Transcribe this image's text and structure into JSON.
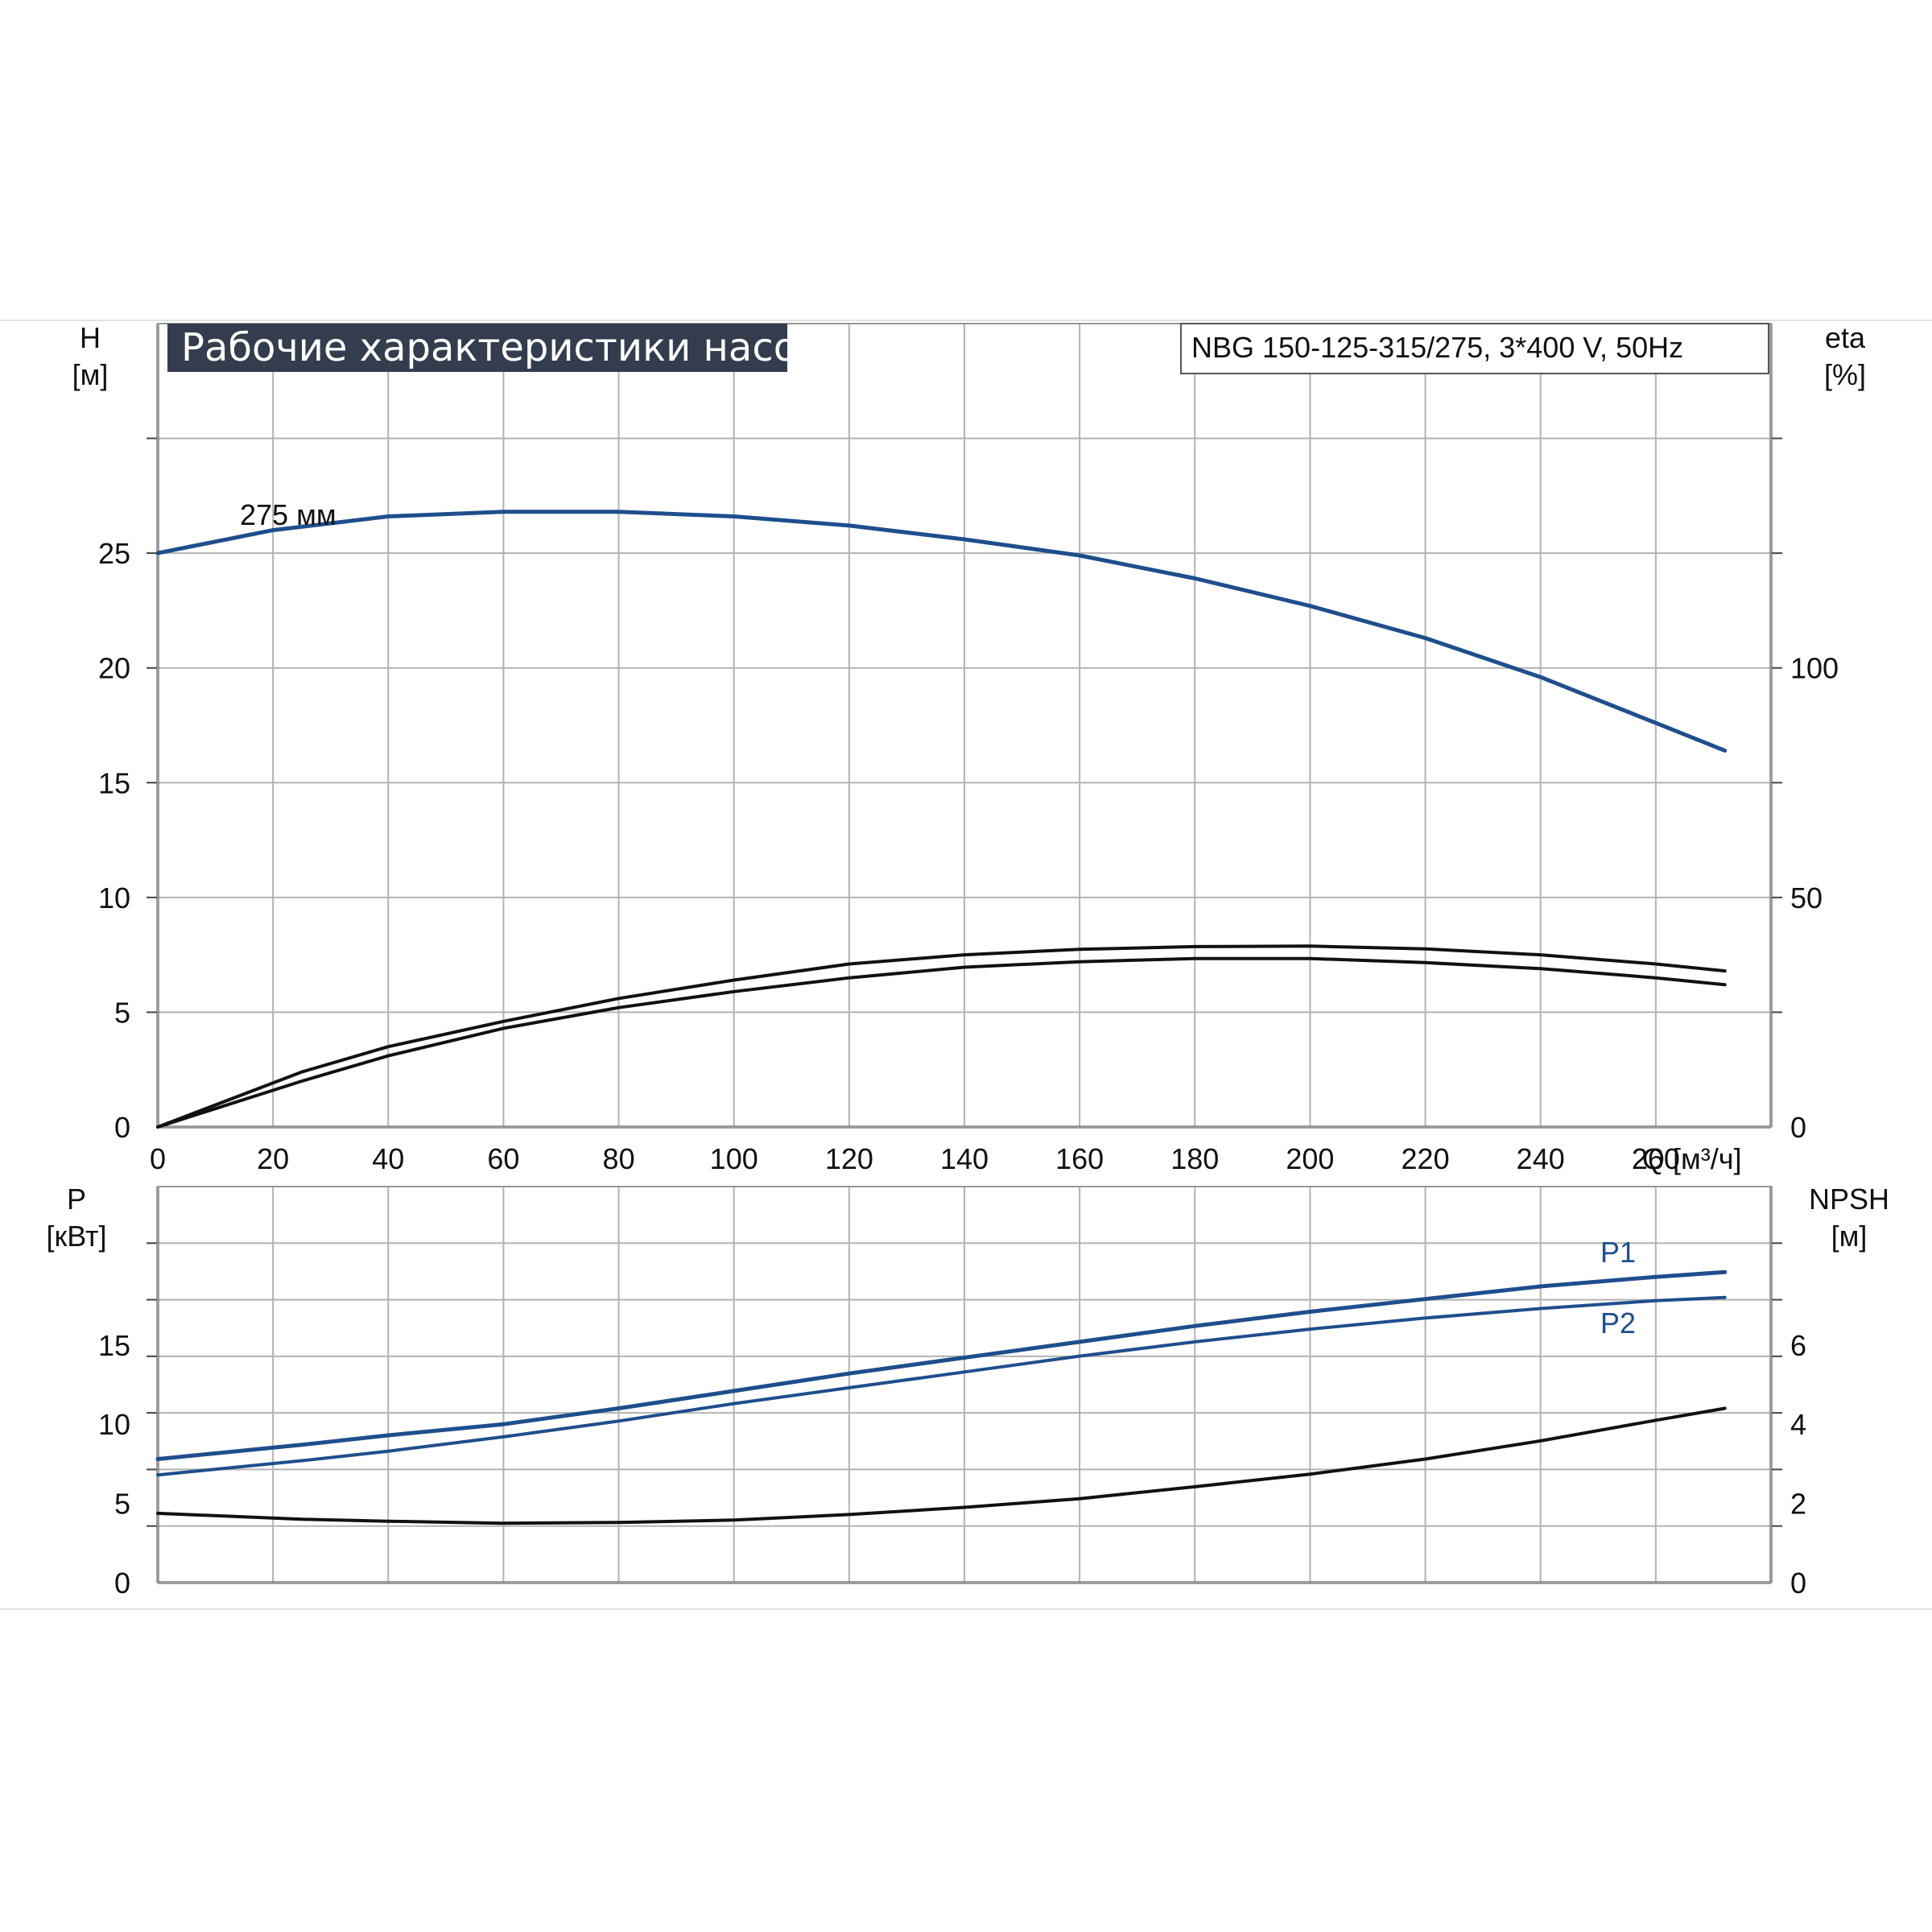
{
  "colors": {
    "blue": "#1f4e8c",
    "black": "#111111",
    "grid": "#b3b3b3",
    "title_bg": "#333d4d"
  },
  "chart_data": [
    {
      "type": "line",
      "title": "Рабочие характеристики насоса",
      "subtitle": "NBG 150-125-315/275, 3*400 V, 50Hz",
      "xlabel": "Q [м³/ч]",
      "ylabel_left": "H\n[м]",
      "ylabel_right": "eta\n[%]",
      "xlim": [
        0,
        280
      ],
      "ylim": [
        0,
        35
      ],
      "y2lim": [
        0,
        175
      ],
      "x_ticks": [
        "0",
        "20",
        "40",
        "60",
        "80",
        "100",
        "120",
        "140",
        "160",
        "180",
        "200",
        "220",
        "240",
        "260"
      ],
      "y_ticks": [
        "0",
        "5",
        "10",
        "15",
        "20",
        "25"
      ],
      "y2_ticks": [
        "0",
        "50",
        "100"
      ],
      "grid": true,
      "annotation": "275 мм",
      "series": [
        {
          "axis": "left",
          "color": "#1f4e8c",
          "x": [
            0,
            20,
            40,
            60,
            80,
            100,
            120,
            140,
            160,
            180,
            200,
            220,
            240,
            260,
            272
          ],
          "y": [
            25.0,
            26.0,
            26.6,
            26.8,
            26.8,
            26.6,
            26.2,
            25.6,
            24.9,
            23.9,
            22.7,
            21.3,
            19.6,
            17.6,
            16.4
          ]
        },
        {
          "axis": "right",
          "color": "#111111",
          "x": [
            0,
            25,
            40,
            60,
            80,
            100,
            120,
            140,
            160,
            180,
            200,
            220,
            240,
            260,
            272
          ],
          "y": [
            0,
            12,
            17.5,
            23,
            28,
            32,
            35.5,
            37.5,
            38.7,
            39.3,
            39.4,
            38.8,
            37.5,
            35.5,
            34
          ]
        },
        {
          "axis": "right",
          "color": "#111111",
          "x": [
            0,
            25,
            40,
            60,
            80,
            100,
            120,
            140,
            160,
            180,
            200,
            220,
            240,
            260,
            272
          ],
          "y": [
            0,
            10,
            15.5,
            21.5,
            26,
            29.5,
            32.5,
            34.8,
            36,
            36.7,
            36.7,
            35.8,
            34.5,
            32.5,
            31
          ]
        }
      ]
    },
    {
      "type": "line",
      "ylabel_left": "P\n[кВт]",
      "ylabel_right": "NPSH\n[м]",
      "xlim": [
        0,
        280
      ],
      "ylim": [
        0,
        25
      ],
      "y2lim": [
        0,
        10
      ],
      "y_ticks": [
        "0",
        "5",
        "10",
        "15"
      ],
      "y2_ticks": [
        "0",
        "2",
        "4",
        "6"
      ],
      "grid": true,
      "series": [
        {
          "name": "P1",
          "axis": "left",
          "color": "#1f4e8c",
          "x": [
            0,
            25,
            40,
            60,
            80,
            100,
            120,
            140,
            160,
            180,
            200,
            220,
            240,
            260,
            272
          ],
          "y": [
            7.8,
            8.7,
            9.3,
            10.0,
            11.0,
            12.1,
            13.2,
            14.2,
            15.2,
            16.2,
            17.1,
            17.9,
            18.7,
            19.3,
            19.6
          ]
        },
        {
          "name": "P2",
          "axis": "left",
          "color": "#1f4e8c",
          "x": [
            0,
            25,
            40,
            60,
            80,
            100,
            120,
            140,
            160,
            180,
            200,
            220,
            240,
            260,
            272
          ],
          "y": [
            6.8,
            7.7,
            8.3,
            9.2,
            10.2,
            11.3,
            12.3,
            13.3,
            14.3,
            15.2,
            16.0,
            16.7,
            17.3,
            17.8,
            18.0
          ]
        },
        {
          "axis": "right",
          "color": "#111111",
          "x": [
            0,
            25,
            40,
            60,
            80,
            100,
            120,
            140,
            160,
            180,
            200,
            220,
            240,
            260,
            272
          ],
          "y": [
            1.75,
            1.6,
            1.55,
            1.5,
            1.52,
            1.58,
            1.72,
            1.9,
            2.12,
            2.42,
            2.74,
            3.12,
            3.58,
            4.1,
            4.4
          ]
        }
      ]
    }
  ]
}
